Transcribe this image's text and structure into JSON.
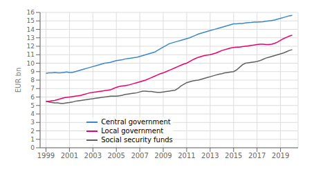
{
  "chart_data": {
    "type": "line",
    "title": "",
    "ylabel": "EUR bn",
    "x": [
      1999.0,
      1999.25,
      1999.5,
      1999.75,
      2000.0,
      2000.25,
      2000.5,
      2000.75,
      2001.0,
      2001.25,
      2001.5,
      2001.75,
      2002.0,
      2002.25,
      2002.5,
      2002.75,
      2003.0,
      2003.25,
      2003.5,
      2003.75,
      2004.0,
      2004.25,
      2004.5,
      2004.75,
      2005.0,
      2005.25,
      2005.5,
      2005.75,
      2006.0,
      2006.25,
      2006.5,
      2006.75,
      2007.0,
      2007.25,
      2007.5,
      2007.75,
      2008.0,
      2008.25,
      2008.5,
      2008.75,
      2009.0,
      2009.25,
      2009.5,
      2009.75,
      2010.0,
      2010.25,
      2010.5,
      2010.75,
      2011.0,
      2011.25,
      2011.5,
      2011.75,
      2012.0,
      2012.25,
      2012.5,
      2012.75,
      2013.0,
      2013.25,
      2013.5,
      2013.75,
      2014.0,
      2014.25,
      2014.5,
      2014.75,
      2015.0,
      2015.25,
      2015.5,
      2015.75,
      2016.0,
      2016.25,
      2016.5,
      2016.75,
      2017.0,
      2017.25,
      2017.5,
      2017.75,
      2018.0,
      2018.25,
      2018.5,
      2018.75,
      2019.0,
      2019.25,
      2019.5,
      2019.75,
      2020.0
    ],
    "series": [
      {
        "name": "Central government",
        "color": "#3a87c8",
        "values": [
          8.8,
          8.85,
          8.85,
          8.9,
          8.85,
          8.85,
          8.9,
          8.95,
          8.9,
          8.9,
          9.0,
          9.1,
          9.2,
          9.3,
          9.4,
          9.5,
          9.6,
          9.7,
          9.8,
          9.9,
          10.0,
          10.05,
          10.1,
          10.2,
          10.3,
          10.35,
          10.4,
          10.5,
          10.55,
          10.6,
          10.65,
          10.7,
          10.8,
          10.9,
          11.0,
          11.1,
          11.2,
          11.3,
          11.5,
          11.7,
          11.9,
          12.1,
          12.3,
          12.4,
          12.5,
          12.6,
          12.7,
          12.8,
          12.9,
          13.0,
          13.15,
          13.3,
          13.45,
          13.55,
          13.65,
          13.75,
          13.85,
          13.95,
          14.05,
          14.15,
          14.25,
          14.35,
          14.45,
          14.55,
          14.65,
          14.65,
          14.7,
          14.7,
          14.75,
          14.8,
          14.82,
          14.85,
          14.85,
          14.88,
          14.9,
          14.95,
          15.0,
          15.05,
          15.1,
          15.2,
          15.3,
          15.4,
          15.5,
          15.6,
          15.65
        ]
      },
      {
        "name": "Local government",
        "color": "#e8006e",
        "values": [
          5.5,
          5.5,
          5.55,
          5.6,
          5.7,
          5.8,
          5.9,
          5.95,
          6.0,
          6.05,
          6.1,
          6.15,
          6.2,
          6.3,
          6.4,
          6.5,
          6.55,
          6.6,
          6.65,
          6.7,
          6.75,
          6.8,
          6.85,
          7.0,
          7.15,
          7.25,
          7.3,
          7.35,
          7.4,
          7.5,
          7.6,
          7.7,
          7.8,
          7.9,
          8.0,
          8.15,
          8.3,
          8.45,
          8.6,
          8.75,
          8.85,
          9.0,
          9.15,
          9.3,
          9.45,
          9.6,
          9.75,
          9.9,
          10.0,
          10.2,
          10.4,
          10.55,
          10.7,
          10.8,
          10.9,
          10.95,
          11.0,
          11.1,
          11.2,
          11.35,
          11.5,
          11.6,
          11.7,
          11.8,
          11.85,
          11.9,
          11.9,
          11.95,
          12.0,
          12.05,
          12.1,
          12.15,
          12.2,
          12.25,
          12.25,
          12.2,
          12.2,
          12.25,
          12.35,
          12.5,
          12.7,
          12.9,
          13.05,
          13.2,
          13.3
        ]
      },
      {
        "name": "Social security funds",
        "color": "#606060",
        "values": [
          5.5,
          5.4,
          5.35,
          5.3,
          5.3,
          5.25,
          5.25,
          5.3,
          5.35,
          5.4,
          5.5,
          5.55,
          5.6,
          5.65,
          5.7,
          5.75,
          5.8,
          5.85,
          5.9,
          5.95,
          6.0,
          6.05,
          6.1,
          6.1,
          6.1,
          6.15,
          6.2,
          6.3,
          6.35,
          6.4,
          6.45,
          6.5,
          6.6,
          6.7,
          6.7,
          6.65,
          6.65,
          6.6,
          6.55,
          6.55,
          6.6,
          6.65,
          6.7,
          6.75,
          6.8,
          7.0,
          7.3,
          7.5,
          7.7,
          7.8,
          7.9,
          7.95,
          8.0,
          8.1,
          8.2,
          8.3,
          8.4,
          8.5,
          8.6,
          8.7,
          8.75,
          8.85,
          8.9,
          8.95,
          9.0,
          9.2,
          9.5,
          9.8,
          10.0,
          10.05,
          10.1,
          10.15,
          10.2,
          10.3,
          10.45,
          10.6,
          10.7,
          10.8,
          10.9,
          11.0,
          11.1,
          11.2,
          11.35,
          11.5,
          11.6
        ]
      }
    ],
    "xlim": [
      1998.5,
      2020.5
    ],
    "ylim": [
      0,
      16
    ],
    "xticks": [
      1999,
      2001,
      2003,
      2005,
      2007,
      2009,
      2011,
      2013,
      2015,
      2017,
      2019
    ],
    "yticks": [
      0,
      1,
      2,
      3,
      4,
      5,
      6,
      7,
      8,
      9,
      10,
      11,
      12,
      13,
      14,
      15,
      16
    ],
    "grid": true,
    "legend": "lower left"
  }
}
